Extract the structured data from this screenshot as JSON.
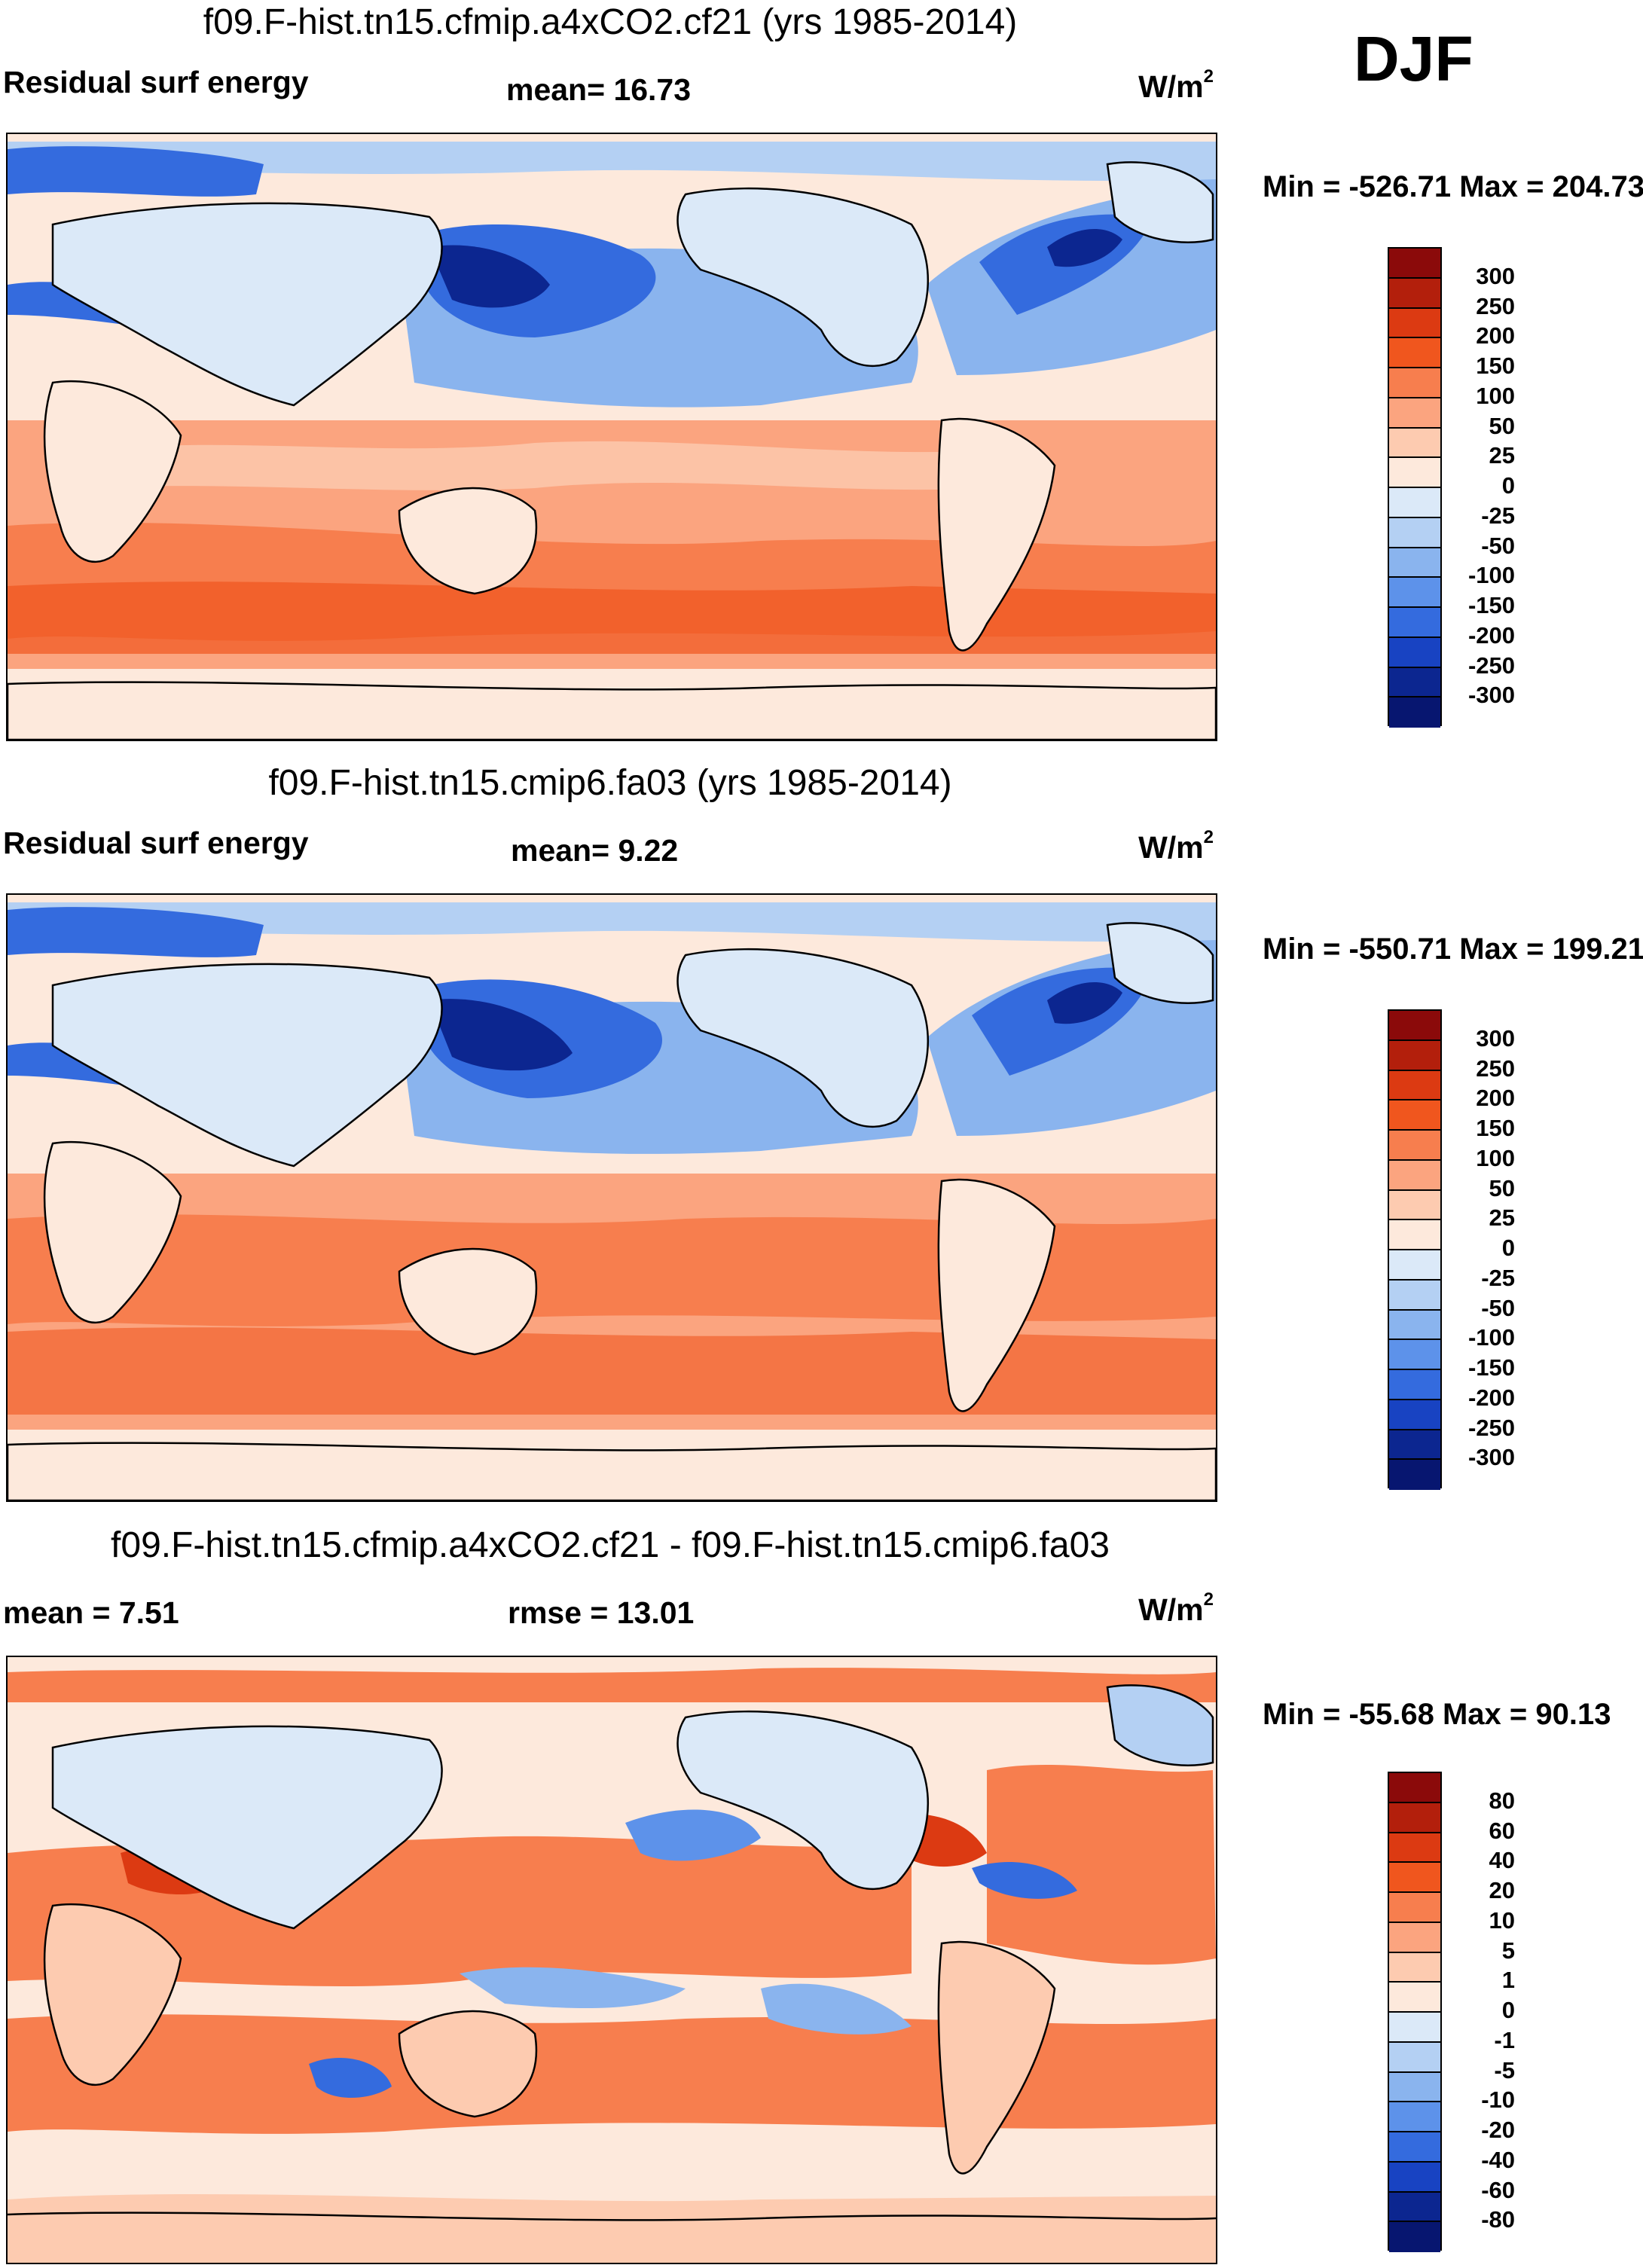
{
  "season_label": "DJF",
  "panels": [
    {
      "title": "f09.F-hist.tn15.cfmip.a4xCO2.cf21 (yrs 1985-2014)",
      "variable": "Residual surf energy",
      "stat": "mean=  16.73",
      "units": "W/m",
      "units_sup": "2",
      "minmax": "Min = -526.71 Max = 204.73"
    },
    {
      "title": "f09.F-hist.tn15.cmip6.fa03 (yrs 1985-2014)",
      "variable": "Residual surf energy",
      "stat": "mean=   9.22",
      "units": "W/m",
      "units_sup": "2",
      "minmax": "Min = -550.71 Max = 199.21"
    },
    {
      "title": "f09.F-hist.tn15.cfmip.a4xCO2.cf21 - f09.F-hist.tn15.cmip6.fa03",
      "variable": "mean =   7.51",
      "stat": "rmse =  13.01",
      "units": "W/m",
      "units_sup": "2",
      "minmax": "Min = -55.68 Max =  90.13"
    }
  ],
  "colorbars": {
    "fields": {
      "labels": [
        "300",
        "250",
        "200",
        "150",
        "100",
        "50",
        "25",
        "0",
        "-25",
        "-50",
        "-100",
        "-150",
        "-200",
        "-250",
        "-300"
      ],
      "colors": [
        "#8b0a0a",
        "#b31f0c",
        "#dc3a12",
        "#f0561e",
        "#f77e4e",
        "#fba47f",
        "#fdcbb0",
        "#fde9dc",
        "#dbe9f8",
        "#b4d0f3",
        "#8ab4ee",
        "#5d92ea",
        "#346bde",
        "#1843c2",
        "#0c2690",
        "#071670"
      ]
    },
    "diff": {
      "labels": [
        "80",
        "60",
        "40",
        "20",
        "10",
        "5",
        "1",
        "0",
        "-1",
        "-5",
        "-10",
        "-20",
        "-40",
        "-60",
        "-80"
      ],
      "colors": [
        "#8b0a0a",
        "#b31f0c",
        "#dc3a12",
        "#f0561e",
        "#f77e4e",
        "#fba47f",
        "#fdcbb0",
        "#fde9dc",
        "#dbe9f8",
        "#b4d0f3",
        "#8ab4ee",
        "#5d92ea",
        "#346bde",
        "#1843c2",
        "#0c2690",
        "#071670"
      ]
    }
  }
}
